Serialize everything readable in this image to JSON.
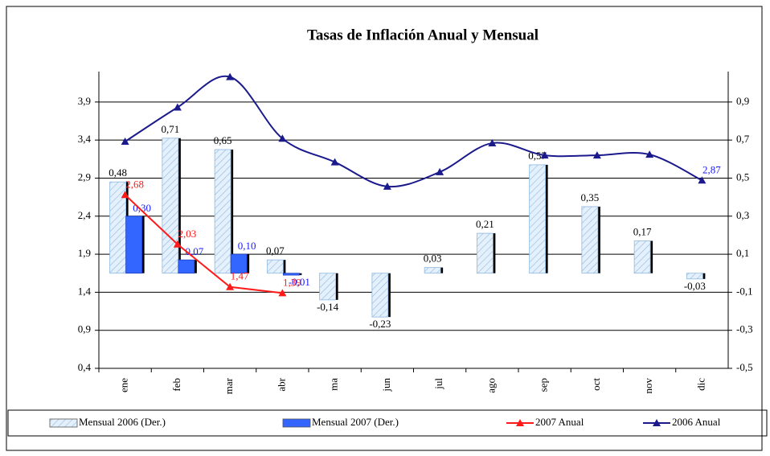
{
  "chart_data": {
    "type": "bar-line",
    "title": "Tasas de Inflación Anual y Mensual",
    "categories": [
      "ene",
      "feb",
      "mar",
      "abr",
      "ma",
      "jun",
      "jul",
      "ago",
      "sep",
      "oct",
      "nov",
      "dic"
    ],
    "ylim": [
      0.4,
      4.3
    ],
    "yticks": [
      {
        "value": 0.4,
        "label": "0,4"
      },
      {
        "value": 0.9,
        "label": "0,9"
      },
      {
        "value": 1.4,
        "label": "1,4"
      },
      {
        "value": 1.9,
        "label": "1,9"
      },
      {
        "value": 2.4,
        "label": "2,4"
      },
      {
        "value": 2.9,
        "label": "2,9"
      },
      {
        "value": 3.4,
        "label": "3,4"
      },
      {
        "value": 3.9,
        "label": "3,9"
      }
    ],
    "y2lim": [
      -0.5,
      1.06
    ],
    "y2ticks": [
      {
        "value": -0.5,
        "label": "-0,5"
      },
      {
        "value": -0.3,
        "label": "-0,3"
      },
      {
        "value": -0.1,
        "label": "-0,1"
      },
      {
        "value": 0.1,
        "label": "0,1"
      },
      {
        "value": 0.3,
        "label": "0,3"
      },
      {
        "value": 0.5,
        "label": "0,5"
      },
      {
        "value": 0.7,
        "label": "0,7"
      },
      {
        "value": 0.9,
        "label": "0,9"
      }
    ],
    "grid": true,
    "legend": "bottom",
    "series": [
      {
        "name": "Mensual 2006 (Der.)",
        "kind": "bar",
        "axis": "y2",
        "color": "#cfe3f7",
        "values": [
          0.48,
          0.71,
          0.65,
          0.07,
          -0.14,
          -0.23,
          0.03,
          0.21,
          0.57,
          0.35,
          0.17,
          -0.03
        ],
        "value_labels": [
          "0,48",
          "0,71",
          "0,65",
          "0,07",
          "-0,14",
          "-0,23",
          "0,03",
          "0,21",
          "0,57",
          "0,35",
          "0,17",
          "-0,03"
        ],
        "label_color": "#000000"
      },
      {
        "name": "Mensual 2007 (Der.)",
        "kind": "bar",
        "axis": "y2",
        "color": "#3366ff",
        "values": [
          0.3,
          0.07,
          0.1,
          -0.01,
          null,
          null,
          null,
          null,
          null,
          null,
          null,
          null
        ],
        "value_labels": [
          "0,30",
          "0,07",
          "0,10",
          "-0,01",
          null,
          null,
          null,
          null,
          null,
          null,
          null,
          null
        ],
        "label_color": "#1a1aff"
      },
      {
        "name": "2007 Anual",
        "kind": "line",
        "color": "#ff1a1a",
        "values": [
          2.68,
          2.03,
          1.47,
          1.39,
          null,
          null,
          null,
          null,
          null,
          null,
          null,
          null
        ],
        "value_labels": [
          "2,68",
          "2,03",
          "1,47",
          "1,39",
          null,
          null,
          null,
          null,
          null,
          null,
          null,
          null
        ],
        "label_color": "#ff1a1a"
      },
      {
        "name": "2006 Anual",
        "kind": "line",
        "color": "#1a1a8c",
        "smooth": true,
        "values": [
          3.38,
          3.83,
          4.23,
          3.42,
          3.11,
          2.79,
          2.98,
          3.36,
          3.2,
          3.2,
          3.21,
          2.87
        ],
        "value_labels": [
          null,
          null,
          null,
          null,
          null,
          null,
          null,
          null,
          null,
          null,
          null,
          "2,87"
        ],
        "label_color": "#1a1aff"
      }
    ]
  }
}
